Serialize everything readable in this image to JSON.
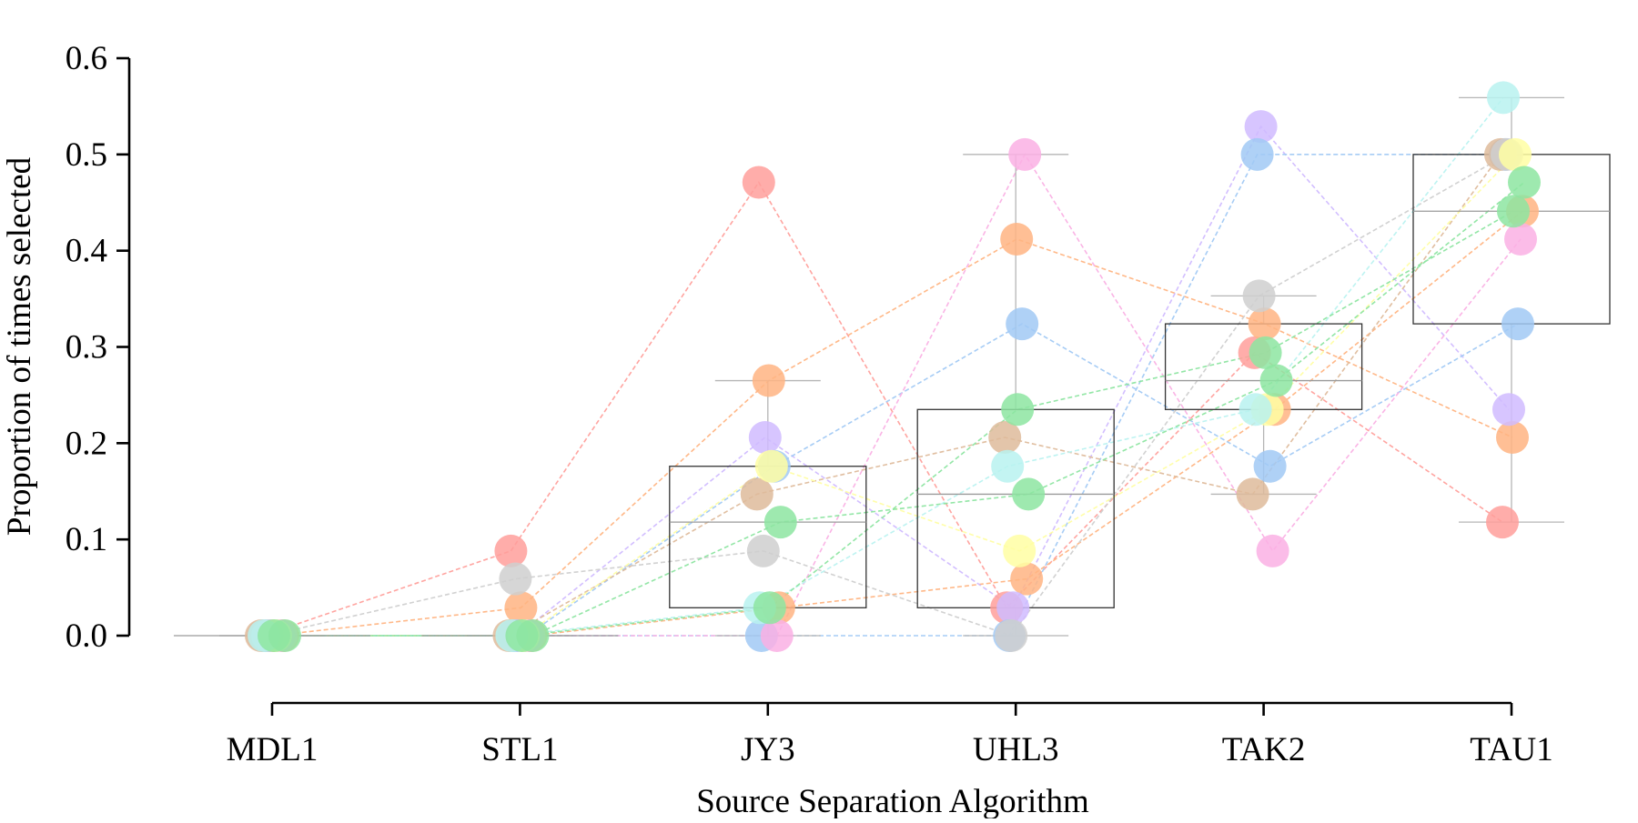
{
  "chart_data": {
    "type": "scatter",
    "subtype": "box-plot with paired dot lines",
    "xlabel": "Source Separation Algorithm",
    "ylabel": "Proportion of times selected",
    "categories": [
      "MDL1",
      "STL1",
      "JY3",
      "UHL3",
      "TAK2",
      "TAU1"
    ],
    "ylim": [
      0.0,
      0.6
    ],
    "yticks": [
      "0.0",
      "0.1",
      "0.2",
      "0.3",
      "0.4",
      "0.5",
      "0.6"
    ],
    "grid": false,
    "boxes": [
      {
        "category": "MDL1",
        "q1": 0.0,
        "median": 0.0,
        "q3": 0.0,
        "whisker_low": 0.0,
        "whisker_high": 0.0
      },
      {
        "category": "STL1",
        "q1": 0.0,
        "median": 0.0,
        "q3": 0.0,
        "whisker_low": 0.0,
        "whisker_high": 0.0
      },
      {
        "category": "JY3",
        "q1": 0.029,
        "median": 0.118,
        "q3": 0.176,
        "whisker_low": 0.0,
        "whisker_high": 0.265
      },
      {
        "category": "UHL3",
        "q1": 0.029,
        "median": 0.147,
        "q3": 0.235,
        "whisker_low": 0.0,
        "whisker_high": 0.5
      },
      {
        "category": "TAK2",
        "q1": 0.235,
        "median": 0.265,
        "q3": 0.324,
        "whisker_low": 0.147,
        "whisker_high": 0.353
      },
      {
        "category": "TAU1",
        "q1": 0.324,
        "median": 0.441,
        "q3": 0.5,
        "whisker_low": 0.118,
        "whisker_high": 0.559
      }
    ],
    "series": [
      {
        "color": "#ff9f9b",
        "values": [
          0.0,
          0.088,
          0.471,
          0.029,
          0.294,
          0.118
        ]
      },
      {
        "color": "#ffb482",
        "values": [
          0.0,
          0.029,
          0.265,
          0.412,
          0.324,
          0.206
        ]
      },
      {
        "color": "#ffb482",
        "values": [
          0.0,
          0.0,
          0.029,
          0.059,
          0.235,
          0.441
        ]
      },
      {
        "color": "#d0bbff",
        "values": [
          0.0,
          0.0,
          0.206,
          0.029,
          0.529,
          0.235
        ]
      },
      {
        "color": "#a1c9f4",
        "values": [
          0.0,
          0.0,
          0.176,
          0.324,
          0.176,
          0.324
        ]
      },
      {
        "color": "#a1c9f4",
        "values": [
          0.0,
          0.0,
          0.0,
          0.0,
          0.5,
          0.5
        ]
      },
      {
        "color": "#debb9b",
        "values": [
          0.0,
          0.0,
          0.147,
          0.206,
          0.147,
          0.5
        ]
      },
      {
        "color": "#fab0e4",
        "values": [
          0.0,
          0.0,
          0.0,
          0.5,
          0.088,
          0.412
        ]
      },
      {
        "color": "#cfcfcf",
        "values": [
          0.0,
          0.059,
          0.088,
          0.0,
          0.353,
          0.5
        ]
      },
      {
        "color": "#fffea3",
        "values": [
          0.0,
          0.0,
          0.176,
          0.088,
          0.235,
          0.5
        ]
      },
      {
        "color": "#b9f2f0",
        "values": [
          0.0,
          0.0,
          0.029,
          0.176,
          0.235,
          0.559
        ]
      },
      {
        "color": "#8de5a1",
        "values": [
          0.0,
          0.0,
          0.118,
          0.147,
          0.265,
          0.471
        ]
      },
      {
        "color": "#8de5a1",
        "values": [
          0.0,
          0.0,
          0.029,
          0.235,
          0.294,
          0.441
        ]
      }
    ]
  }
}
